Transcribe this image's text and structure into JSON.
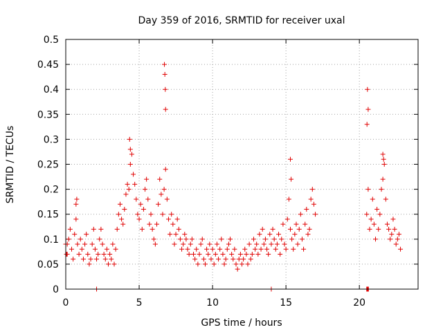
{
  "chart_data": {
    "type": "scatter",
    "title": "Day 359 of 2016, SRMTID for receiver uxal",
    "xlabel": "GPS time / hours",
    "ylabel": "SRMTID / TECUs",
    "xlim": [
      0,
      24
    ],
    "ylim": [
      0,
      0.5
    ],
    "x_ticks": [
      0,
      5,
      10,
      15,
      20
    ],
    "x_tick_labels": [
      "0",
      "5",
      "10",
      "15",
      "20"
    ],
    "y_ticks": [
      0,
      0.05,
      0.1,
      0.15,
      0.2,
      0.25,
      0.3,
      0.35,
      0.4,
      0.45,
      0.5
    ],
    "y_tick_labels": [
      "0",
      "0.05",
      "0.1",
      "0.15",
      "0.2",
      "0.25",
      "0.3",
      "0.35",
      "0.4",
      "0.45",
      "0.5"
    ],
    "grid": true,
    "marker": "+",
    "color": "#e00000",
    "series": [
      {
        "name": "SRMTID",
        "x": [
          0.0,
          0.1,
          0.2,
          0.3,
          0.4,
          0.5,
          0.6,
          0.7,
          0.8,
          0.9,
          1.0,
          1.1,
          1.2,
          1.3,
          1.4,
          1.5,
          1.6,
          1.7,
          1.8,
          1.9,
          2.0,
          2.1,
          2.2,
          2.3,
          2.4,
          2.5,
          2.6,
          2.7,
          2.8,
          2.9,
          3.0,
          3.1,
          3.2,
          3.3,
          3.4,
          3.5,
          3.6,
          3.7,
          3.8,
          3.9,
          4.0,
          4.1,
          4.2,
          4.3,
          4.4,
          4.5,
          4.6,
          4.7,
          4.8,
          4.9,
          5.0,
          5.1,
          5.2,
          5.3,
          5.4,
          5.5,
          5.6,
          5.7,
          5.8,
          5.9,
          6.0,
          6.1,
          6.2,
          6.3,
          6.4,
          6.5,
          6.6,
          6.7,
          6.8,
          6.9,
          7.0,
          7.1,
          7.2,
          7.3,
          7.4,
          7.5,
          7.6,
          7.7,
          7.8,
          7.9,
          8.0,
          8.1,
          8.2,
          8.3,
          8.4,
          8.5,
          8.6,
          8.7,
          8.8,
          8.9,
          9.0,
          9.1,
          9.2,
          9.3,
          9.4,
          9.5,
          9.6,
          9.7,
          9.8,
          9.9,
          10.0,
          10.1,
          10.2,
          10.3,
          10.4,
          10.5,
          10.6,
          10.7,
          10.8,
          10.9,
          11.0,
          11.1,
          11.2,
          11.3,
          11.4,
          11.5,
          11.6,
          11.7,
          11.8,
          11.9,
          12.0,
          12.1,
          12.2,
          12.3,
          12.4,
          12.5,
          12.6,
          12.7,
          12.8,
          12.9,
          13.0,
          13.1,
          13.2,
          13.3,
          13.4,
          13.5,
          13.6,
          13.7,
          13.8,
          13.9,
          14.0,
          14.1,
          14.2,
          14.3,
          14.4,
          14.5,
          14.6,
          14.7,
          14.8,
          14.9,
          15.0,
          15.1,
          15.2,
          15.3,
          15.4,
          15.5,
          15.6,
          15.7,
          15.8,
          15.9,
          16.0,
          16.1,
          16.2,
          16.3,
          16.4,
          16.5,
          16.6,
          16.7,
          16.8,
          16.9,
          17.0,
          20.5,
          20.6,
          20.7,
          20.8,
          20.9,
          21.0,
          21.1,
          21.2,
          21.3,
          21.4,
          21.5,
          21.6,
          21.7,
          21.8,
          21.9,
          22.0,
          22.1,
          22.2,
          22.3,
          22.4,
          22.5,
          22.6,
          22.7,
          22.8,
          6.75,
          6.78,
          6.8,
          6.72,
          20.55,
          20.6,
          20.52,
          21.6,
          21.65,
          15.3,
          15.35,
          4.35,
          4.4,
          0.7,
          0.75,
          0.05,
          0.1,
          2.1,
          14.0,
          20.5,
          20.52,
          20.55,
          20.58,
          20.6,
          20.62
        ],
        "y": [
          0.09,
          0.07,
          0.1,
          0.12,
          0.08,
          0.06,
          0.11,
          0.14,
          0.09,
          0.07,
          0.1,
          0.08,
          0.06,
          0.09,
          0.11,
          0.07,
          0.05,
          0.06,
          0.09,
          0.12,
          0.08,
          0.06,
          0.07,
          0.1,
          0.12,
          0.09,
          0.07,
          0.06,
          0.08,
          0.05,
          0.07,
          0.06,
          0.09,
          0.05,
          0.08,
          0.12,
          0.15,
          0.17,
          0.14,
          0.13,
          0.16,
          0.19,
          0.21,
          0.2,
          0.25,
          0.27,
          0.23,
          0.21,
          0.18,
          0.15,
          0.14,
          0.17,
          0.12,
          0.16,
          0.2,
          0.22,
          0.18,
          0.13,
          0.15,
          0.12,
          0.1,
          0.09,
          0.13,
          0.17,
          0.22,
          0.19,
          0.15,
          0.2,
          0.24,
          0.18,
          0.14,
          0.11,
          0.15,
          0.13,
          0.09,
          0.11,
          0.14,
          0.12,
          0.1,
          0.08,
          0.09,
          0.11,
          0.1,
          0.08,
          0.07,
          0.09,
          0.1,
          0.07,
          0.06,
          0.08,
          0.05,
          0.07,
          0.09,
          0.1,
          0.06,
          0.05,
          0.08,
          0.07,
          0.09,
          0.06,
          0.08,
          0.05,
          0.07,
          0.09,
          0.06,
          0.08,
          0.1,
          0.07,
          0.05,
          0.06,
          0.08,
          0.09,
          0.1,
          0.07,
          0.06,
          0.08,
          0.05,
          0.04,
          0.06,
          0.07,
          0.05,
          0.06,
          0.08,
          0.07,
          0.05,
          0.09,
          0.06,
          0.07,
          0.1,
          0.08,
          0.09,
          0.07,
          0.11,
          0.08,
          0.12,
          0.09,
          0.1,
          0.08,
          0.07,
          0.11,
          0.09,
          0.12,
          0.1,
          0.08,
          0.09,
          0.11,
          0.07,
          0.1,
          0.13,
          0.09,
          0.08,
          0.14,
          0.18,
          0.12,
          0.1,
          0.08,
          0.11,
          0.13,
          0.09,
          0.12,
          0.15,
          0.1,
          0.08,
          0.13,
          0.16,
          0.11,
          0.12,
          0.18,
          0.2,
          0.17,
          0.15,
          0.15,
          0.2,
          0.12,
          0.14,
          0.18,
          0.13,
          0.1,
          0.16,
          0.12,
          0.15,
          0.2,
          0.22,
          0.25,
          0.18,
          0.13,
          0.12,
          0.1,
          0.11,
          0.14,
          0.12,
          0.09,
          0.1,
          0.11,
          0.08,
          0.43,
          0.4,
          0.36,
          0.45,
          0.4,
          0.36,
          0.33,
          0.27,
          0.26,
          0.26,
          0.22,
          0.3,
          0.28,
          0.17,
          0.18,
          0.07,
          0.09,
          0.0,
          0.0,
          0.0,
          0.0,
          0.0,
          0.0,
          0.0,
          0.0
        ]
      }
    ]
  }
}
